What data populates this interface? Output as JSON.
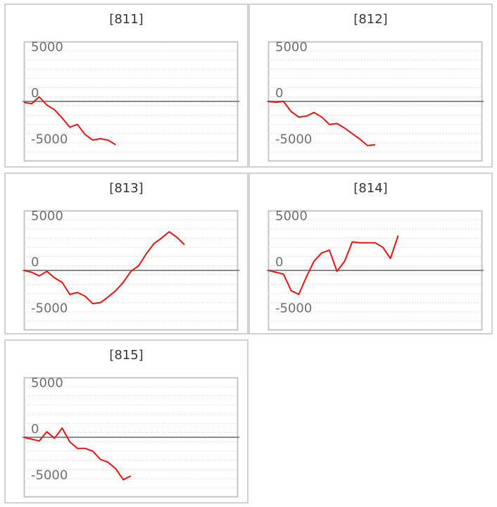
{
  "chart_data": [
    {
      "type": "line",
      "title": "[811]",
      "ylim": [
        -6500,
        6500
      ],
      "y_ticks": [
        5000,
        0,
        -5000
      ],
      "grid": true,
      "zero_line": true,
      "series": [
        {
          "color": "#ee1111",
          "x": [
            0,
            1,
            2,
            3,
            4,
            5,
            6,
            7,
            8,
            9,
            10,
            11,
            12
          ],
          "y": [
            -100,
            -250,
            500,
            -400,
            -900,
            -1800,
            -2800,
            -2500,
            -3600,
            -4200,
            -4050,
            -4200,
            -4700
          ]
        }
      ]
    },
    {
      "type": "line",
      "title": "[812]",
      "ylim": [
        -6500,
        6500
      ],
      "y_ticks": [
        5000,
        0,
        -5000
      ],
      "grid": true,
      "zero_line": true,
      "series": [
        {
          "color": "#ee1111",
          "x": [
            0,
            1,
            2,
            3,
            4,
            5,
            6,
            7,
            8,
            9,
            10,
            11,
            12,
            13,
            14
          ],
          "y": [
            0,
            -100,
            0,
            -1100,
            -1700,
            -1600,
            -1200,
            -1700,
            -2500,
            -2400,
            -2900,
            -3500,
            -4100,
            -4800,
            -4700
          ]
        }
      ]
    },
    {
      "type": "line",
      "title": "[813]",
      "ylim": [
        -6500,
        6500
      ],
      "y_ticks": [
        5000,
        0,
        -5000
      ],
      "grid": true,
      "zero_line": true,
      "series": [
        {
          "color": "#ee1111",
          "x": [
            0,
            1,
            2,
            3,
            4,
            5,
            6,
            7,
            8,
            9,
            10,
            11,
            12,
            13,
            14,
            15,
            16,
            17,
            18,
            19,
            20,
            21
          ],
          "y": [
            0,
            -200,
            -600,
            -100,
            -800,
            -1300,
            -2600,
            -2400,
            -2800,
            -3600,
            -3500,
            -2900,
            -2200,
            -1300,
            -100,
            500,
            1800,
            2900,
            3500,
            4200,
            3600,
            2800
          ]
        }
      ]
    },
    {
      "type": "line",
      "title": "[814]",
      "ylim": [
        -6500,
        6500
      ],
      "y_ticks": [
        5000,
        0,
        -5000
      ],
      "grid": true,
      "zero_line": true,
      "series": [
        {
          "color": "#ee1111",
          "x": [
            0,
            1,
            2,
            3,
            4,
            5,
            6,
            7,
            8,
            9,
            10,
            11,
            12,
            13,
            14,
            15,
            16,
            17
          ],
          "y": [
            0,
            -200,
            -400,
            -2200,
            -2600,
            -700,
            1000,
            1900,
            2200,
            -100,
            1000,
            3100,
            3000,
            3000,
            3000,
            2500,
            1300,
            3800
          ]
        }
      ]
    },
    {
      "type": "line",
      "title": "[815]",
      "ylim": [
        -6500,
        6500
      ],
      "y_ticks": [
        5000,
        0,
        -5000
      ],
      "grid": true,
      "zero_line": true,
      "series": [
        {
          "color": "#ee1111",
          "x": [
            0,
            1,
            2,
            3,
            4,
            5,
            6,
            7,
            8,
            9,
            10,
            11,
            12,
            13,
            14
          ],
          "y": [
            0,
            -200,
            -400,
            600,
            -100,
            1000,
            -500,
            -1200,
            -1200,
            -1500,
            -2400,
            -2700,
            -3400,
            -4600,
            -4200
          ]
        }
      ]
    }
  ]
}
